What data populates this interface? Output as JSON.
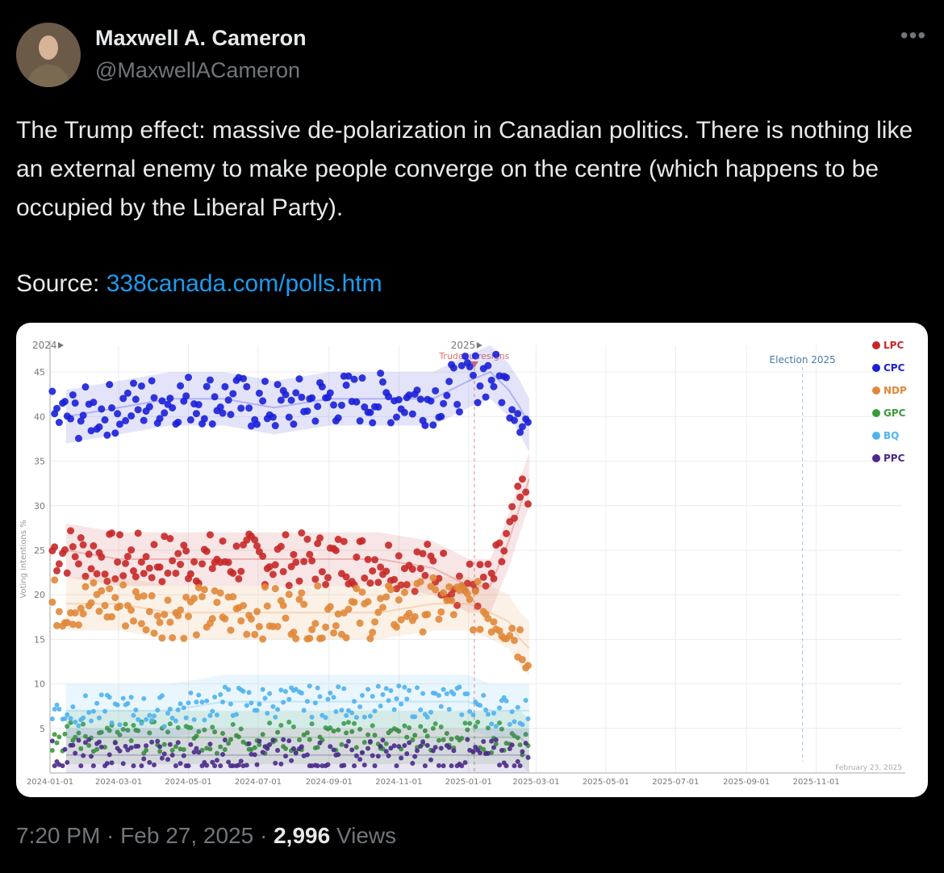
{
  "author": {
    "name": "Maxwell A. Cameron",
    "handle": "@MaxwellACameron",
    "more_icon": "more-horizontal-icon"
  },
  "tweet": {
    "text": "The Trump effect: massive de-polarization in Canadian politics. There is nothing like an external enemy to make people converge on the centre (which happens to be occupied by the Liberal Party).",
    "source_label": "Source:",
    "source_link": "338canada.com/polls.htm"
  },
  "meta": {
    "time": "7:20 PM",
    "date": "Feb 27, 2025",
    "views_count": "2,996",
    "views_label": "Views"
  },
  "chart_data": {
    "type": "scatter",
    "title": "",
    "ylabel": "Voting intentions %",
    "ylim": [
      0,
      48
    ],
    "yticks": [
      5,
      10,
      15,
      20,
      25,
      30,
      35,
      40,
      45
    ],
    "x_start": "2024-01-01",
    "x_end": "2026-01-15",
    "xticks": [
      "2024-01-01",
      "2024-03-01",
      "2024-05-01",
      "2024-07-01",
      "2024-09-01",
      "2024-11-01",
      "2025-01-01",
      "2025-03-01",
      "2025-05-01",
      "2025-07-01",
      "2025-09-01",
      "2025-11-01"
    ],
    "year_markers": [
      {
        "label": "2024",
        "date": "2024-01-01"
      },
      {
        "label": "2025",
        "date": "2025-01-01"
      }
    ],
    "event": {
      "label": "Trudeau resigns",
      "date": "2025-01-06"
    },
    "election": {
      "label": "Election 2025",
      "date": "2025-10-20"
    },
    "date_note": "February 23, 2025",
    "series": [
      {
        "name": "LPC",
        "color": "#c62828",
        "x": [
          "2024-01-15",
          "2024-03-01",
          "2024-04-15",
          "2024-06-01",
          "2024-07-15",
          "2024-09-01",
          "2024-10-15",
          "2024-12-01",
          "2025-01-01",
          "2025-01-20",
          "2025-02-05",
          "2025-02-15",
          "2025-02-23"
        ],
        "values": [
          25,
          24,
          24,
          24,
          24,
          24,
          24,
          23,
          21,
          21,
          26,
          30,
          33
        ]
      },
      {
        "name": "CPC",
        "color": "#1a1fd8",
        "x": [
          "2024-01-15",
          "2024-03-01",
          "2024-04-15",
          "2024-06-01",
          "2024-07-15",
          "2024-09-01",
          "2024-10-15",
          "2024-12-01",
          "2025-01-01",
          "2025-01-20",
          "2025-02-05",
          "2025-02-15",
          "2025-02-23"
        ],
        "values": [
          40,
          41,
          42,
          42,
          41,
          42,
          42,
          42,
          44,
          45,
          43,
          41,
          39
        ]
      },
      {
        "name": "NDP",
        "color": "#e0883a",
        "x": [
          "2024-01-15",
          "2024-03-01",
          "2024-04-15",
          "2024-06-01",
          "2024-07-15",
          "2024-09-01",
          "2024-10-15",
          "2024-12-01",
          "2025-01-01",
          "2025-01-20",
          "2025-02-05",
          "2025-02-15",
          "2025-02-23"
        ],
        "values": [
          19,
          19,
          18,
          18,
          18,
          18,
          18,
          19,
          19,
          18,
          17,
          15,
          14
        ]
      },
      {
        "name": "GPC",
        "color": "#3a9a3a",
        "x": [
          "2024-01-15",
          "2024-03-01",
          "2024-04-15",
          "2024-06-01",
          "2024-07-15",
          "2024-09-01",
          "2024-10-15",
          "2024-12-01",
          "2025-01-01",
          "2025-01-20",
          "2025-02-05",
          "2025-02-15",
          "2025-02-23"
        ],
        "values": [
          4,
          4,
          4,
          4,
          4,
          4,
          4,
          4,
          4,
          4,
          4,
          4,
          3
        ]
      },
      {
        "name": "BQ",
        "color": "#4fb3ee",
        "x": [
          "2024-01-15",
          "2024-03-01",
          "2024-04-15",
          "2024-06-01",
          "2024-07-15",
          "2024-09-01",
          "2024-10-15",
          "2024-12-01",
          "2025-01-01",
          "2025-01-20",
          "2025-02-05",
          "2025-02-15",
          "2025-02-23"
        ],
        "values": [
          7,
          7,
          7,
          8,
          8,
          8,
          8,
          8,
          8,
          7,
          7,
          7,
          7
        ]
      },
      {
        "name": "PPC",
        "color": "#4a2a8a",
        "x": [
          "2024-01-15",
          "2024-03-01",
          "2024-04-15",
          "2024-06-01",
          "2024-07-15",
          "2024-09-01",
          "2024-10-15",
          "2024-12-01",
          "2025-01-01",
          "2025-01-20",
          "2025-02-05",
          "2025-02-15",
          "2025-02-23"
        ],
        "values": [
          2,
          2,
          2,
          2,
          2,
          2,
          2,
          2,
          2,
          2,
          2,
          2,
          2
        ]
      }
    ]
  }
}
